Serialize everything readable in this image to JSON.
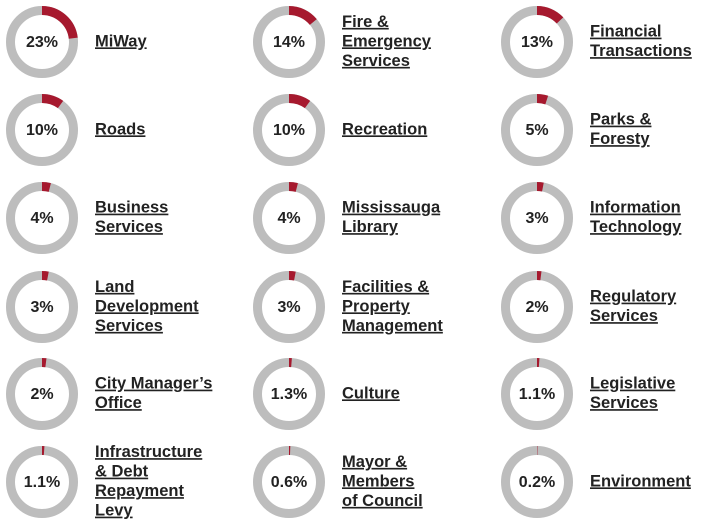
{
  "chart_data": [
    {
      "type": "donut",
      "label": [
        "MiWay"
      ],
      "values": [
        23
      ],
      "value_labels": [
        "23%"
      ],
      "color": "#a6192e",
      "track_color": "#bdbdbd"
    },
    {
      "type": "donut",
      "label": [
        "Fire &",
        "Emergency",
        "Services"
      ],
      "values": [
        14
      ],
      "value_labels": [
        "14%"
      ],
      "color": "#a6192e",
      "track_color": "#bdbdbd"
    },
    {
      "type": "donut",
      "label": [
        "Financial",
        "Transactions"
      ],
      "values": [
        13
      ],
      "value_labels": [
        "13%"
      ],
      "color": "#a6192e",
      "track_color": "#bdbdbd"
    },
    {
      "type": "donut",
      "label": [
        "Roads"
      ],
      "values": [
        10
      ],
      "value_labels": [
        "10%"
      ],
      "color": "#a6192e",
      "track_color": "#bdbdbd"
    },
    {
      "type": "donut",
      "label": [
        "Recreation"
      ],
      "values": [
        10
      ],
      "value_labels": [
        "10%"
      ],
      "color": "#a6192e",
      "track_color": "#bdbdbd"
    },
    {
      "type": "donut",
      "label": [
        "Parks &",
        "Foresty"
      ],
      "values": [
        5
      ],
      "value_labels": [
        "5%"
      ],
      "color": "#a6192e",
      "track_color": "#bdbdbd"
    },
    {
      "type": "donut",
      "label": [
        "Business",
        "Services"
      ],
      "values": [
        4
      ],
      "value_labels": [
        "4%"
      ],
      "color": "#a6192e",
      "track_color": "#bdbdbd"
    },
    {
      "type": "donut",
      "label": [
        "Mississauga",
        "Library"
      ],
      "values": [
        4
      ],
      "value_labels": [
        "4%"
      ],
      "color": "#a6192e",
      "track_color": "#bdbdbd"
    },
    {
      "type": "donut",
      "label": [
        "Information",
        "Technology"
      ],
      "values": [
        3
      ],
      "value_labels": [
        "3%"
      ],
      "color": "#a6192e",
      "track_color": "#bdbdbd"
    },
    {
      "type": "donut",
      "label": [
        "Land",
        "Development",
        "Services"
      ],
      "values": [
        3
      ],
      "value_labels": [
        "3%"
      ],
      "color": "#a6192e",
      "track_color": "#bdbdbd"
    },
    {
      "type": "donut",
      "label": [
        "Facilities &",
        "Property",
        "Management"
      ],
      "values": [
        3
      ],
      "value_labels": [
        "3%"
      ],
      "color": "#a6192e",
      "track_color": "#bdbdbd"
    },
    {
      "type": "donut",
      "label": [
        "Regulatory",
        "Services"
      ],
      "values": [
        2
      ],
      "value_labels": [
        "2%"
      ],
      "color": "#a6192e",
      "track_color": "#bdbdbd"
    },
    {
      "type": "donut",
      "label": [
        "City Manager’s",
        "Office"
      ],
      "values": [
        2
      ],
      "value_labels": [
        "2%"
      ],
      "color": "#a6192e",
      "track_color": "#bdbdbd"
    },
    {
      "type": "donut",
      "label": [
        "Culture"
      ],
      "values": [
        1.3
      ],
      "value_labels": [
        "1.3%"
      ],
      "color": "#a6192e",
      "track_color": "#bdbdbd"
    },
    {
      "type": "donut",
      "label": [
        "Legislative",
        "Services"
      ],
      "values": [
        1.1
      ],
      "value_labels": [
        "1.1%"
      ],
      "color": "#a6192e",
      "track_color": "#bdbdbd"
    },
    {
      "type": "donut",
      "label": [
        "Infrastructure",
        "& Debt",
        "Repayment",
        "Levy"
      ],
      "values": [
        1.1
      ],
      "value_labels": [
        "1.1%"
      ],
      "color": "#a6192e",
      "track_color": "#bdbdbd"
    },
    {
      "type": "donut",
      "label": [
        "Mayor &",
        "Members",
        "of Council"
      ],
      "values": [
        0.6
      ],
      "value_labels": [
        "0.6%"
      ],
      "color": "#a6192e",
      "track_color": "#bdbdbd"
    },
    {
      "type": "donut",
      "label": [
        "Environment"
      ],
      "values": [
        0.2
      ],
      "value_labels": [
        "0.2%"
      ],
      "color": "#a6192e",
      "track_color": "#bdbdbd"
    }
  ]
}
